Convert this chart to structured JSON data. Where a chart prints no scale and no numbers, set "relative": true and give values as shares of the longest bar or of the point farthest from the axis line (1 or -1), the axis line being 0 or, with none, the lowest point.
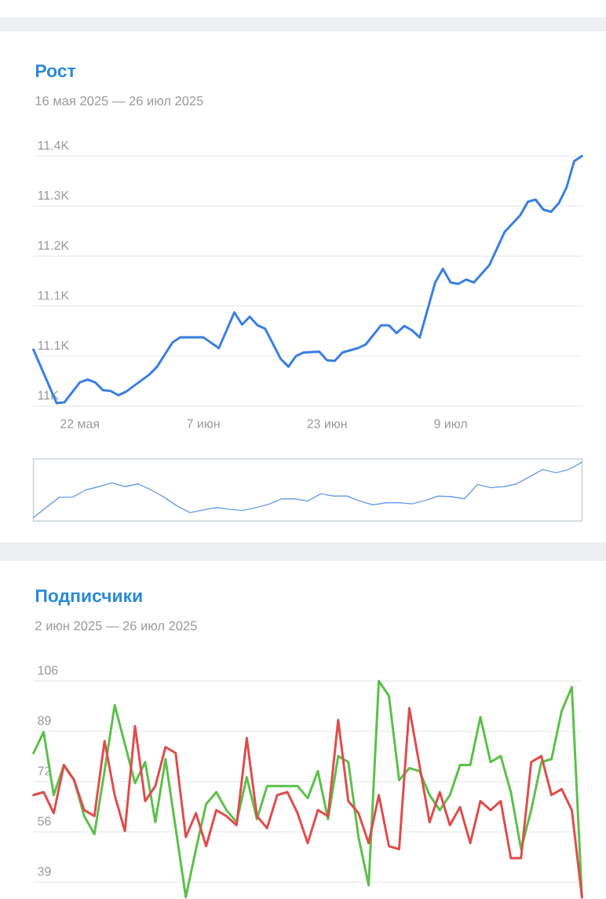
{
  "chart_data": [
    {
      "type": "line",
      "title": "Рост",
      "subtitle": "16 мая 2025 — 26 июл 2025",
      "color": "#3a7fe0",
      "marker": "none",
      "grid": "y",
      "x": [
        "2025-05-16",
        "2025-05-19",
        "2025-05-20",
        "2025-05-22",
        "2025-05-23",
        "2025-05-24",
        "2025-05-25",
        "2025-05-26",
        "2025-05-27",
        "2025-05-28",
        "2025-05-31",
        "2025-06-01",
        "2025-06-03",
        "2025-06-04",
        "2025-06-07",
        "2025-06-09",
        "2025-06-11",
        "2025-06-12",
        "2025-06-13",
        "2025-06-14",
        "2025-06-15",
        "2025-06-17",
        "2025-06-18",
        "2025-06-19",
        "2025-06-20",
        "2025-06-22",
        "2025-06-23",
        "2025-06-24",
        "2025-06-25",
        "2025-06-27",
        "2025-06-28",
        "2025-06-30",
        "2025-07-01",
        "2025-07-02",
        "2025-07-03",
        "2025-07-04",
        "2025-07-05",
        "2025-07-07",
        "2025-07-08",
        "2025-07-09",
        "2025-07-10",
        "2025-07-11",
        "2025-07-12",
        "2025-07-14",
        "2025-07-16",
        "2025-07-18",
        "2025-07-19",
        "2025-07-20",
        "2025-07-21",
        "2025-07-22",
        "2025-07-23",
        "2025-07-24",
        "2025-07-25",
        "2025-07-26"
      ],
      "values": [
        11079,
        11004,
        11005,
        11033,
        11037,
        11033,
        11022,
        11021,
        11015,
        11020,
        11044,
        11055,
        11089,
        11096,
        11096,
        11081,
        11131,
        11114,
        11125,
        11113,
        11108,
        11066,
        11055,
        11070,
        11075,
        11076,
        11064,
        11063,
        11075,
        11081,
        11086,
        11113,
        11113,
        11102,
        11112,
        11106,
        11096,
        11173,
        11192,
        11173,
        11171,
        11177,
        11173,
        11197,
        11244,
        11267,
        11286,
        11289,
        11275,
        11272,
        11284,
        11306,
        11343,
        11350
      ],
      "xlim": [
        "2025-05-16",
        "2025-07-26"
      ],
      "xticks": [
        {
          "value": "2025-05-22",
          "label": "22 мая"
        },
        {
          "value": "2025-06-07",
          "label": "7 июн"
        },
        {
          "value": "2025-06-23",
          "label": "23 июн"
        },
        {
          "value": "2025-07-09",
          "label": "9 июл"
        }
      ],
      "ylim": [
        11000,
        11350
      ],
      "yticks": [
        {
          "value": 11000,
          "label": "11K"
        },
        {
          "value": 11070,
          "label": "11.1K"
        },
        {
          "value": 11140,
          "label": "11.1K"
        },
        {
          "value": 11210,
          "label": "11.2K"
        },
        {
          "value": 11280,
          "label": "11.3K"
        },
        {
          "value": 11350,
          "label": "11.4K"
        }
      ]
    },
    {
      "type": "line",
      "relative": true,
      "color": "#6f9fe6",
      "marker": "none",
      "categories": [
        null,
        null,
        null,
        null,
        null,
        null,
        null,
        null,
        null,
        null,
        null,
        null,
        null,
        null,
        null,
        null,
        null,
        null,
        null,
        null,
        null,
        null,
        null,
        null,
        null,
        null,
        null,
        null,
        null,
        null,
        null,
        null,
        null,
        null,
        null,
        null,
        null,
        null,
        null,
        null,
        null,
        null,
        null
      ],
      "values": [
        0,
        0.19,
        0.37,
        0.37,
        0.5,
        0.56,
        0.63,
        0.56,
        0.61,
        0.5,
        0.37,
        0.21,
        0.09,
        0.14,
        0.18,
        0.15,
        0.13,
        0.18,
        0.24,
        0.34,
        0.34,
        0.3,
        0.43,
        0.39,
        0.39,
        0.3,
        0.23,
        0.27,
        0.27,
        0.25,
        0.31,
        0.39,
        0.38,
        0.34,
        0.6,
        0.54,
        0.56,
        0.61,
        0.74,
        0.87,
        0.81,
        0.87,
        1
      ]
    },
    {
      "type": "line",
      "title": "Подписчики",
      "subtitle": "2 июн 2025 — 26 июл 2025",
      "marker": "none",
      "grid": "y",
      "tick_labels": "y",
      "categories": [
        null,
        null,
        null,
        null,
        null,
        null,
        null,
        null,
        null,
        null,
        null,
        null,
        null,
        null,
        null,
        null,
        null,
        null,
        null,
        null,
        null,
        null,
        null,
        null,
        null,
        null,
        null,
        null,
        null,
        null,
        null,
        null,
        null,
        null,
        null,
        null,
        null,
        null,
        null,
        null,
        null,
        null,
        null,
        null,
        null,
        null,
        null,
        null,
        null,
        null,
        null,
        null,
        null,
        null,
        null
      ],
      "series": [
        {
          "color": "#5cc04a",
          "values": [
            82,
            89,
            68,
            78,
            73,
            61,
            55,
            76,
            98,
            85,
            72,
            79,
            59,
            80,
            57,
            34,
            50,
            65,
            69,
            63,
            59,
            74,
            60,
            71,
            71,
            71,
            71,
            67,
            76,
            60,
            81,
            79,
            54,
            38,
            106,
            101,
            73,
            77,
            76,
            68,
            63,
            68,
            78,
            78,
            94,
            79,
            81,
            69,
            50,
            63,
            79,
            80,
            96,
            104,
            34
          ]
        },
        {
          "color": "#e04c4c",
          "values": [
            68,
            69,
            62,
            78,
            73,
            63,
            61,
            86,
            68,
            56,
            91,
            66,
            71,
            84,
            82,
            54,
            62,
            51,
            63,
            61,
            58,
            87,
            61,
            57,
            68,
            69,
            62,
            52,
            63,
            61,
            93,
            66,
            62,
            52,
            68,
            51,
            50,
            97,
            78,
            59,
            69,
            58,
            64,
            52,
            66,
            63,
            66,
            47,
            47,
            79,
            81,
            68,
            70,
            63,
            34
          ]
        }
      ],
      "ylim": [
        33.4,
        106
      ],
      "yticks": [
        {
          "value": 39,
          "label": "39"
        },
        {
          "value": 55.75,
          "label": "56"
        },
        {
          "value": 72.5,
          "label": "72"
        },
        {
          "value": 89.25,
          "label": "89"
        },
        {
          "value": 106,
          "label": "106"
        }
      ]
    }
  ]
}
